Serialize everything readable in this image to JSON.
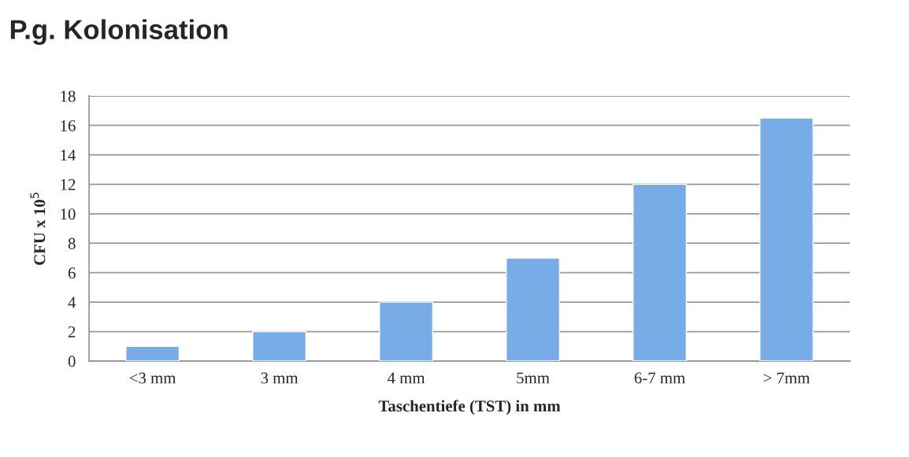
{
  "chart_data": {
    "type": "bar",
    "title": "P.g. Kolonisation",
    "xlabel": "Taschentiefe (TST) in mm",
    "ylabel": "CFU x 10$^{5}$",
    "categories": [
      "<3 mm",
      "3 mm",
      "4 mm",
      "5mm",
      "6-7 mm",
      "> 7mm"
    ],
    "values": [
      1,
      2,
      4,
      7,
      12,
      16.5
    ],
    "color": "#78ace6",
    "ylim": [
      0,
      18
    ],
    "yticks": [
      0,
      2,
      4,
      6,
      8,
      10,
      12,
      14,
      16,
      18
    ],
    "grid": "y",
    "legend": false
  }
}
